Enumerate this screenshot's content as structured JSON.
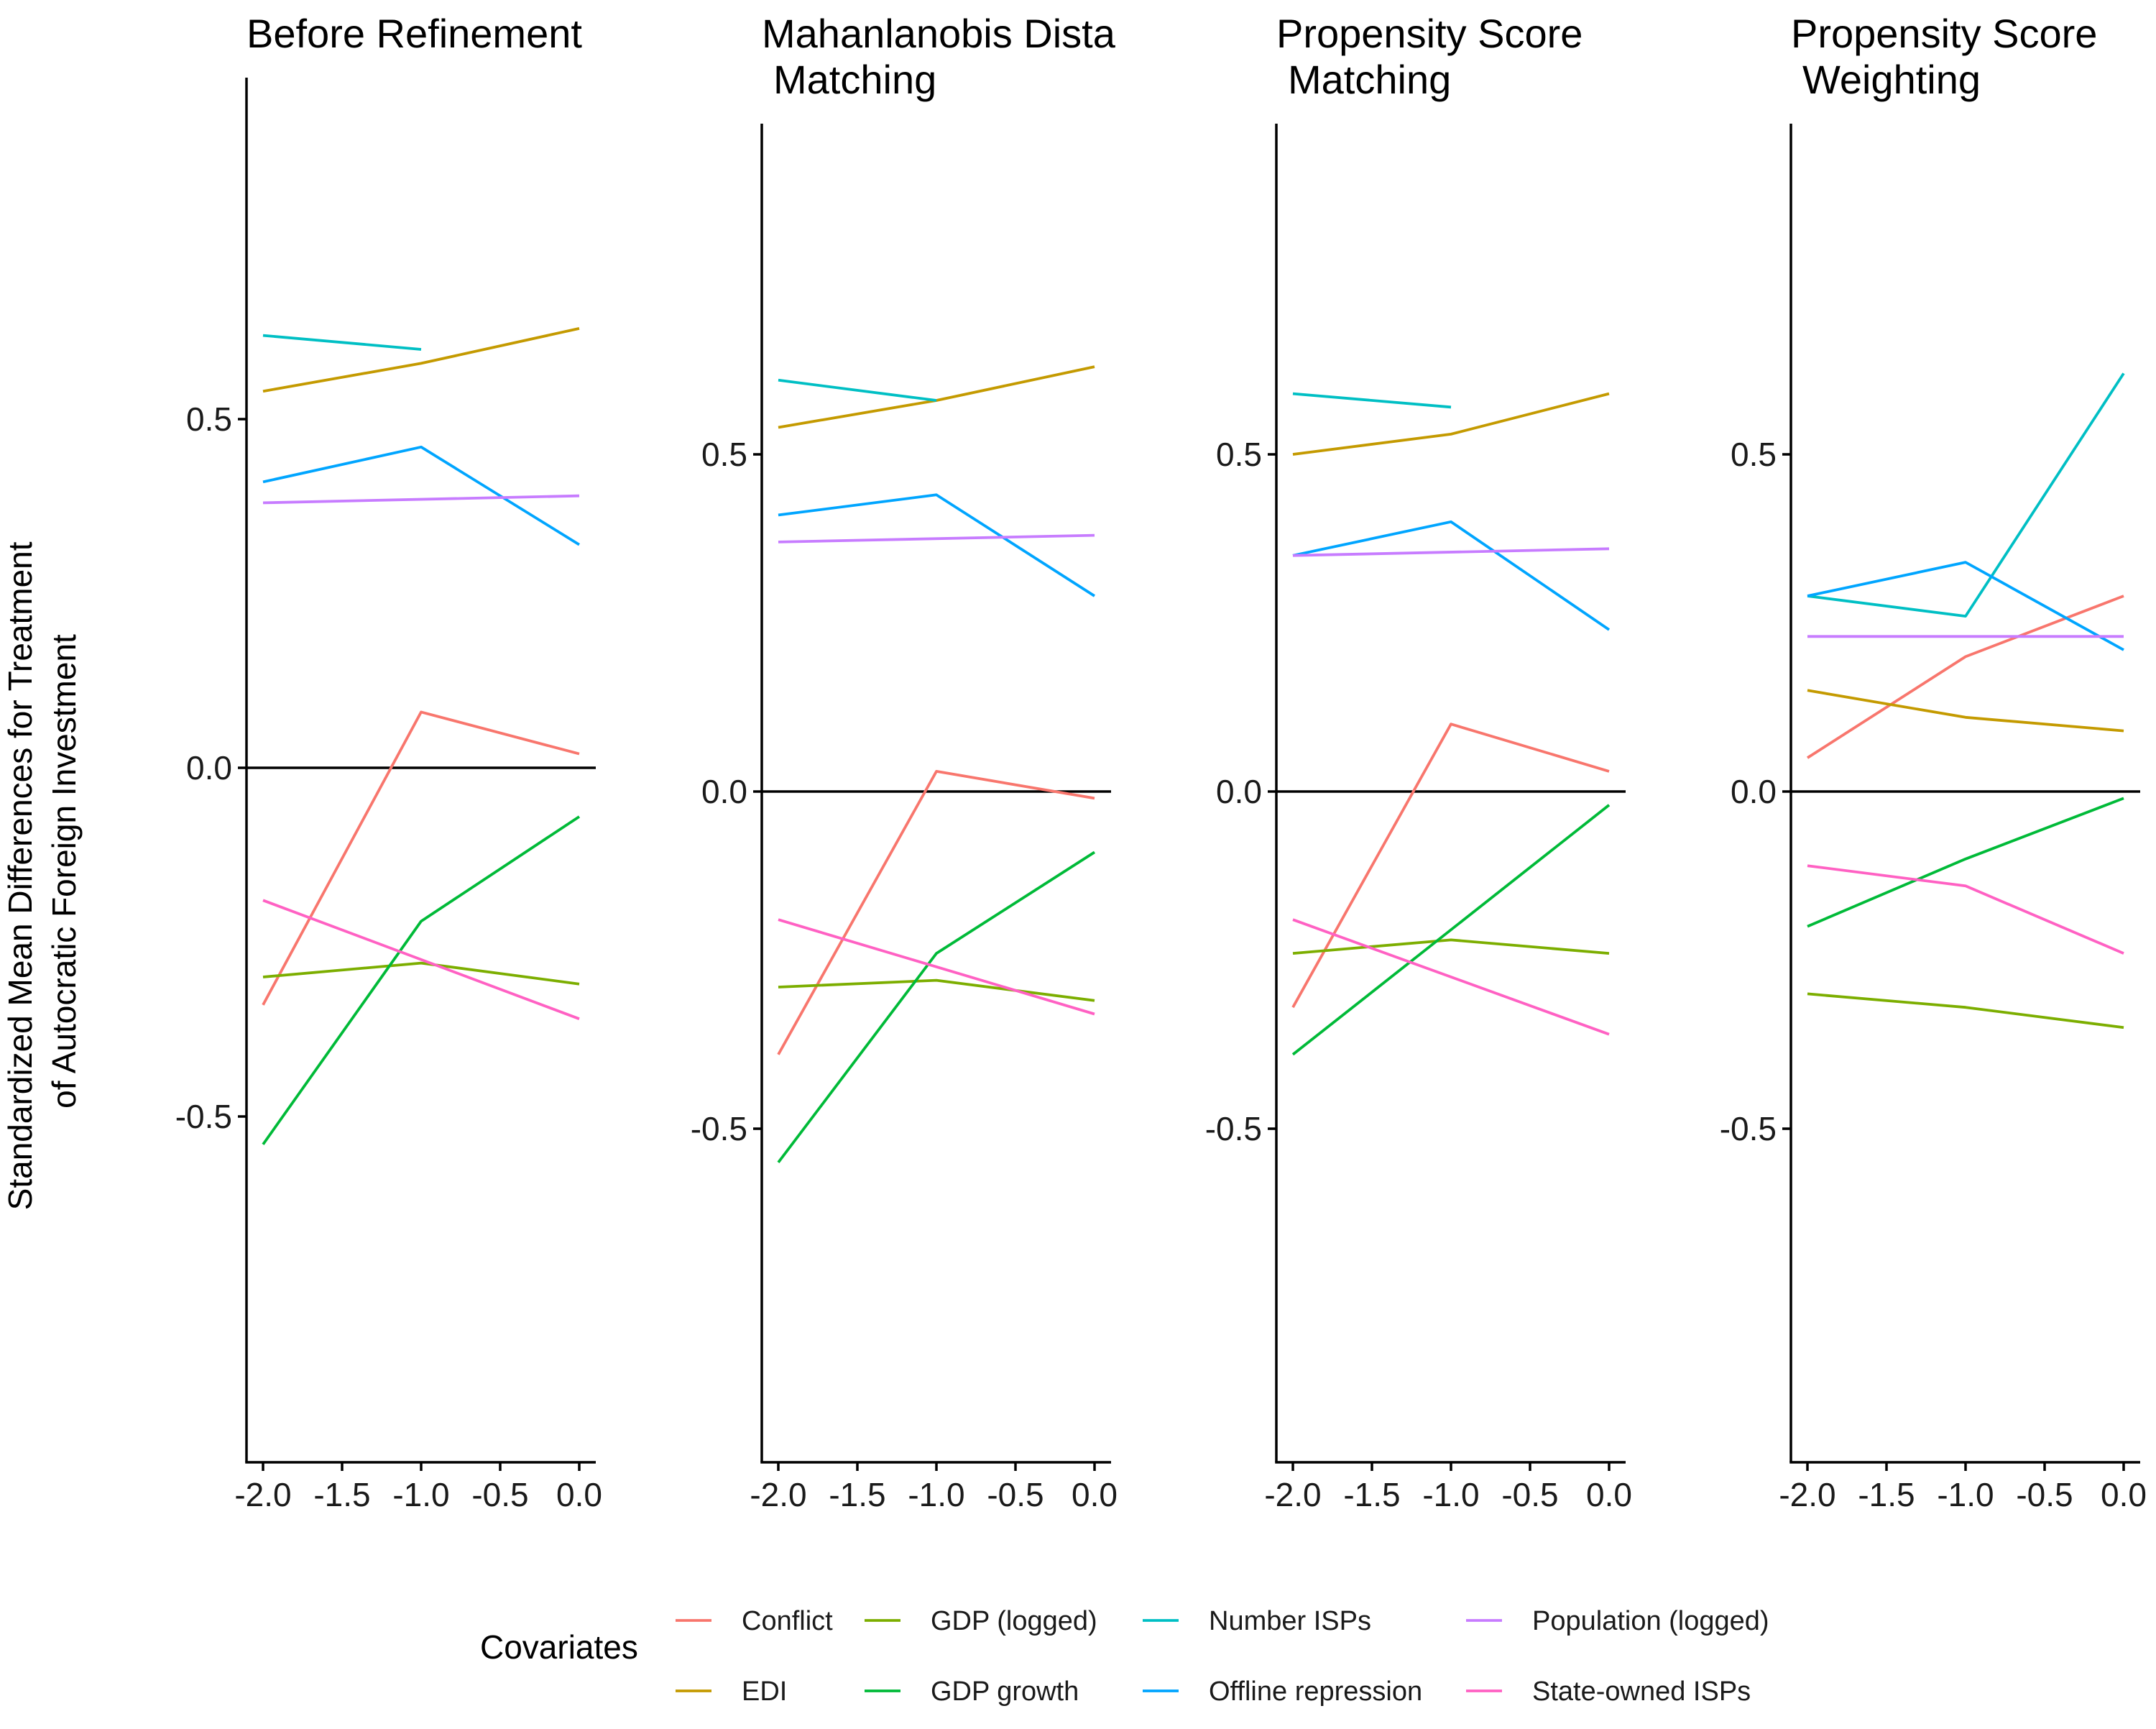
{
  "y_axis_label": [
    "Standardized Mean Differences for Treatment",
    "of Autocratic Foreign Investment"
  ],
  "legend": {
    "title": "Covariates",
    "items": [
      {
        "name": "Conflict",
        "color": "#F8766D"
      },
      {
        "name": "EDI",
        "color": "#C49A00"
      },
      {
        "name": "GDP (logged)",
        "color": "#7CAE00"
      },
      {
        "name": "GDP growth",
        "color": "#00BA38"
      },
      {
        "name": "Number ISPs",
        "color": "#00BFC4"
      },
      {
        "name": "Offline repression",
        "color": "#00A5FF"
      },
      {
        "name": "Population (logged)",
        "color": "#C77CFF"
      },
      {
        "name": "State-owned ISPs",
        "color": "#FF61C3"
      }
    ]
  },
  "chart_data": [
    {
      "type": "line",
      "title": [
        "Before Refinement"
      ],
      "x_ticks": [
        "-2.0",
        "-1.5",
        "-1.0",
        "-0.5",
        "0.0"
      ],
      "y_ticks": [
        "0.5",
        "0.0",
        "-0.5"
      ],
      "xlim": [
        -2.1,
        0.1
      ],
      "ylim": [
        -0.99,
        0.99
      ],
      "series": [
        {
          "name": "Conflict",
          "x": [
            -2,
            -1,
            0
          ],
          "y": [
            -0.34,
            0.08,
            0.02
          ]
        },
        {
          "name": "EDI",
          "x": [
            -2,
            -1,
            0
          ],
          "y": [
            0.54,
            0.58,
            0.63
          ]
        },
        {
          "name": "GDP (logged)",
          "x": [
            -2,
            -1,
            0
          ],
          "y": [
            -0.3,
            -0.28,
            -0.31
          ]
        },
        {
          "name": "GDP growth",
          "x": [
            -2,
            -1,
            0
          ],
          "y": [
            -0.54,
            -0.22,
            -0.07
          ]
        },
        {
          "name": "Number ISPs",
          "x": [
            -2,
            -1
          ],
          "y": [
            0.62,
            0.6
          ]
        },
        {
          "name": "Offline repression",
          "x": [
            -2,
            -1,
            0
          ],
          "y": [
            0.41,
            0.46,
            0.32
          ]
        },
        {
          "name": "Population (logged)",
          "x": [
            -2,
            0
          ],
          "y": [
            0.38,
            0.39
          ]
        },
        {
          "name": "State-owned ISPs",
          "x": [
            -2,
            0
          ],
          "y": [
            -0.19,
            -0.36
          ]
        }
      ]
    },
    {
      "type": "line",
      "title": [
        "Mahanlanobis Dista",
        "Matching"
      ],
      "x_ticks": [
        "-2.0",
        "-1.5",
        "-1.0",
        "-0.5",
        "0.0"
      ],
      "y_ticks": [
        "0.5",
        "0.0",
        "-0.5"
      ],
      "xlim": [
        -2.1,
        0.1
      ],
      "ylim": [
        -0.99,
        0.99
      ],
      "series": [
        {
          "name": "Conflict",
          "x": [
            -2,
            -1,
            0
          ],
          "y": [
            -0.39,
            0.03,
            -0.01
          ]
        },
        {
          "name": "EDI",
          "x": [
            -2,
            -1,
            0
          ],
          "y": [
            0.54,
            0.58,
            0.63
          ]
        },
        {
          "name": "GDP (logged)",
          "x": [
            -2,
            -1,
            0
          ],
          "y": [
            -0.29,
            -0.28,
            -0.31
          ]
        },
        {
          "name": "GDP growth",
          "x": [
            -2,
            -1,
            0
          ],
          "y": [
            -0.55,
            -0.24,
            -0.09
          ]
        },
        {
          "name": "Number ISPs",
          "x": [
            -2,
            -1
          ],
          "y": [
            0.61,
            0.58
          ]
        },
        {
          "name": "Offline repression",
          "x": [
            -2,
            -1,
            0
          ],
          "y": [
            0.41,
            0.44,
            0.29
          ]
        },
        {
          "name": "Population (logged)",
          "x": [
            -2,
            0
          ],
          "y": [
            0.37,
            0.38
          ]
        },
        {
          "name": "State-owned ISPs",
          "x": [
            -2,
            0
          ],
          "y": [
            -0.19,
            -0.33
          ]
        }
      ]
    },
    {
      "type": "line",
      "title": [
        "Propensity Score",
        "Matching"
      ],
      "x_ticks": [
        "-2.0",
        "-1.5",
        "-1.0",
        "-0.5",
        "0.0"
      ],
      "y_ticks": [
        "0.5",
        "0.0",
        "-0.5"
      ],
      "xlim": [
        -2.1,
        0.1
      ],
      "ylim": [
        -0.99,
        0.99
      ],
      "series": [
        {
          "name": "Conflict",
          "x": [
            -2,
            -1,
            0
          ],
          "y": [
            -0.32,
            0.1,
            0.03
          ]
        },
        {
          "name": "EDI",
          "x": [
            -2,
            -1,
            0
          ],
          "y": [
            0.5,
            0.53,
            0.59
          ]
        },
        {
          "name": "GDP (logged)",
          "x": [
            -2,
            -1,
            0
          ],
          "y": [
            -0.24,
            -0.22,
            -0.24
          ]
        },
        {
          "name": "GDP growth",
          "x": [
            -2,
            0
          ],
          "y": [
            -0.39,
            -0.02
          ]
        },
        {
          "name": "Number ISPs",
          "x": [
            -2,
            -1
          ],
          "y": [
            0.59,
            0.57
          ]
        },
        {
          "name": "Offline repression",
          "x": [
            -2,
            -1,
            0
          ],
          "y": [
            0.35,
            0.4,
            0.24
          ]
        },
        {
          "name": "Population (logged)",
          "x": [
            -2,
            0
          ],
          "y": [
            0.35,
            0.36
          ]
        },
        {
          "name": "State-owned ISPs",
          "x": [
            -2,
            0
          ],
          "y": [
            -0.19,
            -0.36
          ]
        }
      ]
    },
    {
      "type": "line",
      "title": [
        "Propensity Score",
        "Weighting"
      ],
      "x_ticks": [
        "-2.0",
        "-1.5",
        "-1.0",
        "-0.5",
        "0.0"
      ],
      "y_ticks": [
        "0.5",
        "0.0",
        "-0.5"
      ],
      "xlim": [
        -2.1,
        0.1
      ],
      "ylim": [
        -0.99,
        0.99
      ],
      "series": [
        {
          "name": "Conflict",
          "x": [
            -2,
            -1,
            0
          ],
          "y": [
            0.05,
            0.2,
            0.29
          ]
        },
        {
          "name": "EDI",
          "x": [
            -2,
            -1,
            0
          ],
          "y": [
            0.15,
            0.11,
            0.09
          ]
        },
        {
          "name": "GDP (logged)",
          "x": [
            -2,
            -1,
            0
          ],
          "y": [
            -0.3,
            -0.32,
            -0.35
          ]
        },
        {
          "name": "GDP growth",
          "x": [
            -2,
            -1,
            0
          ],
          "y": [
            -0.2,
            -0.1,
            -0.01
          ]
        },
        {
          "name": "Number ISPs",
          "x": [
            -2,
            -1,
            0
          ],
          "y": [
            0.29,
            0.26,
            0.62
          ]
        },
        {
          "name": "Offline repression",
          "x": [
            -2,
            -1,
            0
          ],
          "y": [
            0.29,
            0.34,
            0.21
          ]
        },
        {
          "name": "Population (logged)",
          "x": [
            -2,
            0
          ],
          "y": [
            0.23,
            0.23
          ]
        },
        {
          "name": "State-owned ISPs",
          "x": [
            -2,
            -1,
            0
          ],
          "y": [
            -0.11,
            -0.14,
            -0.24
          ]
        }
      ]
    }
  ]
}
